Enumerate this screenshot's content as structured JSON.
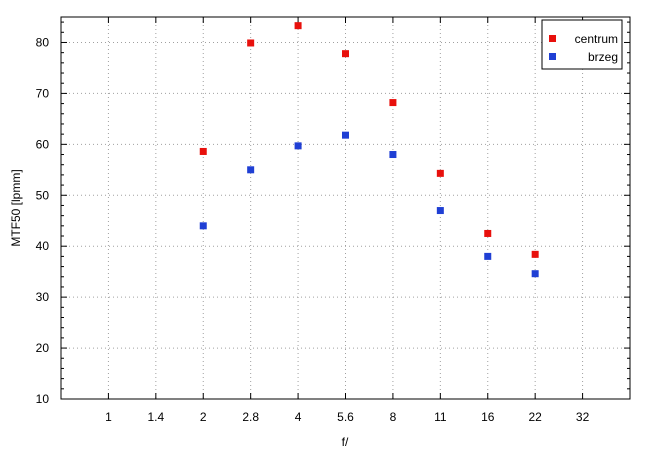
{
  "chart_data": {
    "type": "scatter",
    "xlabel": "f/",
    "ylabel": "MTF50 [lpmm]",
    "x_ticks": [
      "1",
      "1.4",
      "2",
      "2.8",
      "4",
      "5.6",
      "8",
      "11",
      "16",
      "22",
      "32"
    ],
    "xlim": [
      "",
      ""
    ],
    "ylim": [
      10,
      85
    ],
    "y_ticks": [
      10,
      20,
      30,
      40,
      50,
      60,
      70,
      80
    ],
    "grid": true,
    "legend_position": "top-right",
    "series": [
      {
        "name": "centrum",
        "color": "#e8100c",
        "x": [
          "2",
          "2.8",
          "4",
          "5.6",
          "8",
          "11",
          "16",
          "22"
        ],
        "values": [
          58.6,
          79.9,
          83.3,
          77.8,
          68.2,
          54.3,
          42.5,
          38.4
        ]
      },
      {
        "name": "brzeg",
        "color": "#1f3fd4",
        "x": [
          "2",
          "2.8",
          "4",
          "5.6",
          "8",
          "11",
          "16",
          "22"
        ],
        "values": [
          44.0,
          55.0,
          59.7,
          61.8,
          58.0,
          47.0,
          38.0,
          34.6
        ]
      }
    ]
  }
}
